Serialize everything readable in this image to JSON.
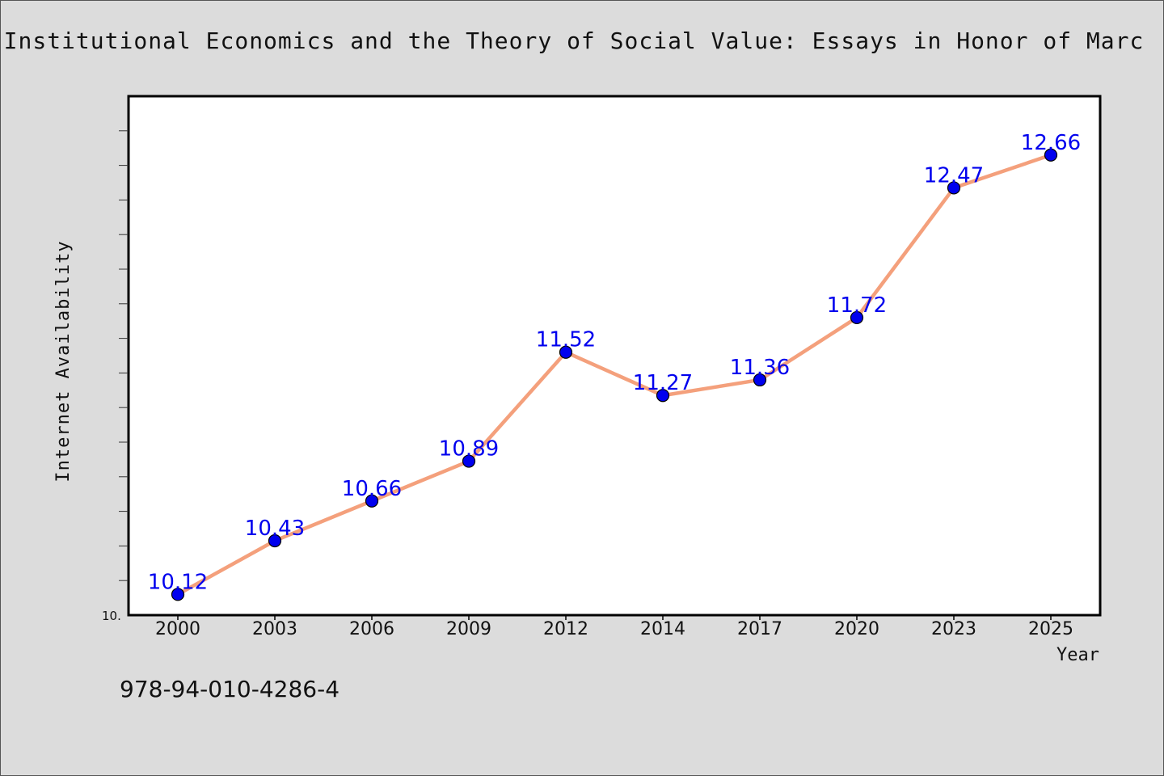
{
  "chart_data": {
    "type": "line",
    "title": "Institutional Economics and the Theory of Social Value: Essays in Honor of Marc",
    "xlabel": "Year",
    "ylabel": "Internet Availability",
    "categories": [
      "2000",
      "2003",
      "2006",
      "2009",
      "2012",
      "2014",
      "2017",
      "2020",
      "2023",
      "2025"
    ],
    "series": [
      {
        "values": [
          10.12,
          10.43,
          10.66,
          10.89,
          11.52,
          11.27,
          11.36,
          11.72,
          12.47,
          12.66
        ],
        "labels": [
          "10.12",
          "10.43",
          "10.66",
          "10.89",
          "11.52",
          "11.27",
          "11.36",
          "11.72",
          "12.47",
          "12.66"
        ],
        "line_color": "#f4a07c",
        "marker_color": "#0000ee",
        "label_color": "#0000ee"
      }
    ],
    "ylim": [
      10.0,
      13.0
    ],
    "ytick_label": "10.",
    "grid": false,
    "legend": false,
    "plot_background": "#ffffff",
    "figure_background": "#dcdcdc"
  },
  "footer": {
    "code": "978-94-010-4286-4"
  }
}
